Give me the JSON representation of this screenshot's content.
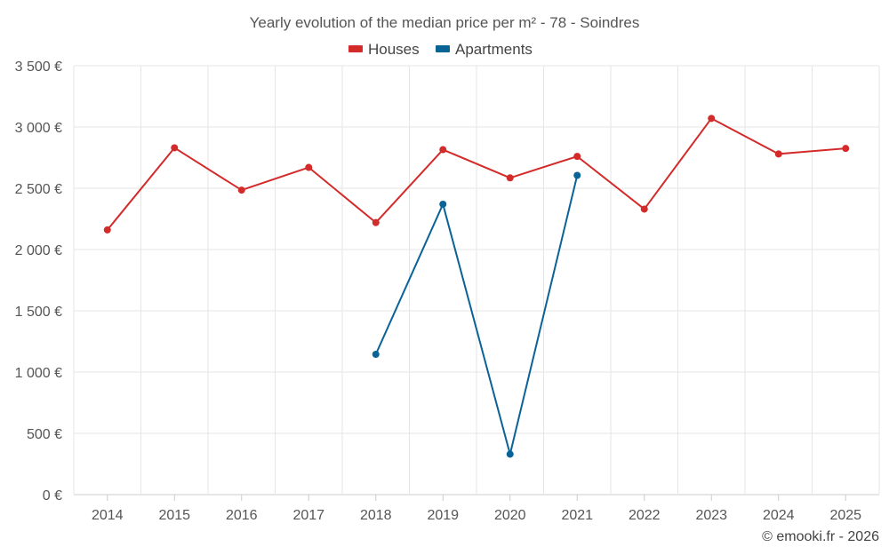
{
  "chart_data": {
    "type": "line",
    "title": "Yearly evolution of the median price per m² - 78 - Soindres",
    "categories": [
      "2014",
      "2015",
      "2016",
      "2017",
      "2018",
      "2019",
      "2020",
      "2021",
      "2022",
      "2023",
      "2024",
      "2025"
    ],
    "series": [
      {
        "name": "Houses",
        "color": "#d32a2a",
        "values": [
          2160,
          2830,
          2485,
          2670,
          2220,
          2815,
          2585,
          2760,
          2330,
          3070,
          2780,
          2825
        ]
      },
      {
        "name": "Apartments",
        "color": "#0a6397",
        "values": [
          null,
          null,
          null,
          null,
          1145,
          2370,
          330,
          2605,
          null,
          null,
          null,
          null
        ]
      }
    ],
    "ylim": [
      0,
      3500
    ],
    "yticks": [
      0,
      500,
      1000,
      1500,
      2000,
      2500,
      3000,
      3500
    ],
    "ytick_labels": [
      "0 €",
      "500 €",
      "1 000 €",
      "1 500 €",
      "2 000 €",
      "2 500 €",
      "3 000 €",
      "3 500 €"
    ],
    "xlabel": "",
    "ylabel": "",
    "grid": true,
    "legend_position": "top-center"
  },
  "credit": "© emooki.fr - 2026"
}
